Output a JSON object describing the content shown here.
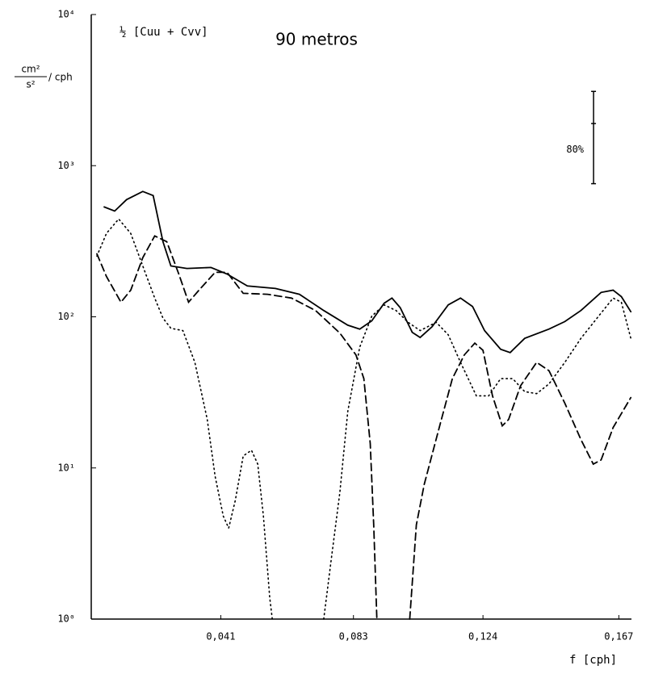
{
  "chart_data": {
    "type": "line",
    "title": "90 metros",
    "annotation": "½ [Cuu + Cvv]",
    "y_label": {
      "numerator": "cm²",
      "denominator": "s²",
      "unit": "/ cph"
    },
    "x_label": "f [cph]",
    "xlim": [
      0,
      0.171
    ],
    "ylim": [
      1,
      10000
    ],
    "log_y": true,
    "xticks": [
      {
        "value": 0.041,
        "label": "0,041"
      },
      {
        "value": 0.083,
        "label": "0,083"
      },
      {
        "value": 0.124,
        "label": "0,124"
      },
      {
        "value": 0.167,
        "label": "0,167"
      }
    ],
    "yticks": [
      {
        "value": 1,
        "label": "10⁰"
      },
      {
        "value": 10,
        "label": "10¹"
      },
      {
        "value": 100,
        "label": "10²"
      },
      {
        "value": 1000,
        "label": "10³"
      },
      {
        "value": 10000,
        "label": "10⁴"
      }
    ],
    "confidence_bar": {
      "label": "80%",
      "x": 0.159,
      "values": [
        3100,
        1900,
        760
      ]
    },
    "series": [
      {
        "color": "#000000",
        "dash": "solid",
        "x": [
          0.0041,
          0.0074,
          0.0112,
          0.0163,
          0.0196,
          0.0227,
          0.0252,
          0.0303,
          0.0379,
          0.043,
          0.0494,
          0.0583,
          0.0659,
          0.0736,
          0.0812,
          0.085,
          0.0888,
          0.0927,
          0.0952,
          0.0978,
          0.1016,
          0.1041,
          0.1079,
          0.113,
          0.1169,
          0.1207,
          0.1245,
          0.1296,
          0.1326,
          0.1372,
          0.1449,
          0.1499,
          0.155,
          0.1614,
          0.1652,
          0.1678,
          0.1708
        ],
        "values": [
          533,
          501,
          596,
          675,
          634,
          314,
          217,
          209,
          212,
          192,
          160,
          154,
          141,
          110,
          88,
          83,
          94,
          123,
          133,
          115,
          79,
          73,
          86,
          120,
          133,
          117,
          81,
          61,
          58,
          72,
          83,
          93,
          110,
          145,
          150,
          136,
          108
        ]
      },
      {
        "color": "#000000",
        "dash": "dashed",
        "x": [
          0.0018,
          0.0048,
          0.0094,
          0.0125,
          0.0163,
          0.0201,
          0.0239,
          0.0277,
          0.0308,
          0.0341,
          0.0392,
          0.043,
          0.0481,
          0.0558,
          0.0634,
          0.071,
          0.0787,
          0.0838,
          0.0863,
          0.0883,
          0.0894,
          0.0904,
          0.095,
          0.1008,
          0.1029,
          0.1054,
          0.1105,
          0.1143,
          0.1181,
          0.1214,
          0.124,
          0.127,
          0.1301,
          0.1321,
          0.1359,
          0.141,
          0.1449,
          0.1499,
          0.155,
          0.1589,
          0.1614,
          0.1652,
          0.1708
        ],
        "values": [
          261,
          185,
          125,
          150,
          246,
          343,
          314,
          192,
          125,
          150,
          197,
          197,
          143,
          141,
          133,
          110,
          78,
          56,
          39,
          14.5,
          4.2,
          1,
          null,
          1,
          4.2,
          7.8,
          19.7,
          39,
          56,
          67,
          60,
          30,
          19.0,
          20.9,
          35,
          50,
          44,
          26.8,
          15.4,
          10.6,
          11.3,
          18.5,
          29.2
        ]
      },
      {
        "color": "#000000",
        "dash": "dotted",
        "x": [
          0.0018,
          0.0048,
          0.0087,
          0.0125,
          0.0163,
          0.0201,
          0.0227,
          0.0252,
          0.029,
          0.0328,
          0.0367,
          0.0392,
          0.0418,
          0.0435,
          0.0456,
          0.0481,
          0.0507,
          0.0527,
          0.0545,
          0.0565,
          0.0573,
          0.065,
          0.0736,
          0.0761,
          0.0787,
          0.0812,
          0.085,
          0.0888,
          0.0927,
          0.0965,
          0.1003,
          0.1041,
          0.1092,
          0.113,
          0.1169,
          0.1219,
          0.1258,
          0.1296,
          0.1334,
          0.1372,
          0.141,
          0.1449,
          0.1499,
          0.155,
          0.1601,
          0.1652,
          0.1678,
          0.1708
        ],
        "values": [
          252,
          356,
          444,
          356,
          217,
          133,
          98,
          84,
          81,
          50,
          21,
          8.8,
          4.8,
          4.0,
          6.1,
          12.0,
          13.1,
          10.6,
          4.8,
          1.39,
          1,
          null,
          1,
          2.6,
          6.9,
          23.7,
          63,
          101,
          120,
          110,
          92,
          81,
          92,
          76,
          50,
          30,
          30,
          39,
          39,
          32,
          31,
          36,
          50,
          72,
          98,
          133,
          125,
          72
        ]
      }
    ]
  }
}
